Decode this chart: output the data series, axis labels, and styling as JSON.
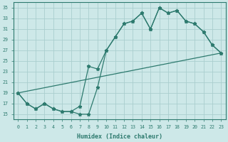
{
  "bg_color": "#cde8e8",
  "grid_color": "#aacece",
  "line_color": "#2d7a6e",
  "xlabel": "Humidex (Indice chaleur)",
  "xlim": [
    -0.5,
    23.5
  ],
  "ylim": [
    14,
    36
  ],
  "yticks": [
    15,
    17,
    19,
    21,
    23,
    25,
    27,
    29,
    31,
    33,
    35
  ],
  "xticks": [
    0,
    1,
    2,
    3,
    4,
    5,
    6,
    7,
    8,
    9,
    10,
    11,
    12,
    13,
    14,
    15,
    16,
    17,
    18,
    19,
    20,
    21,
    22,
    23
  ],
  "line1_x": [
    0,
    1,
    2,
    3,
    4,
    5,
    6,
    7,
    8,
    9,
    10,
    11,
    12,
    13,
    14,
    15,
    16,
    17,
    18,
    19,
    20,
    21,
    22,
    23
  ],
  "line1_y": [
    19,
    17,
    16,
    17,
    16,
    15.5,
    15.5,
    15,
    15,
    20,
    27,
    29.5,
    32,
    32.5,
    34,
    31,
    35,
    34,
    34.5,
    32.5,
    32,
    30.5,
    28,
    26.5
  ],
  "line2_x": [
    0,
    1,
    2,
    3,
    4,
    5,
    6,
    7,
    8,
    9,
    10,
    11,
    12,
    13,
    14,
    15,
    16,
    17,
    18,
    19,
    20,
    21,
    22,
    23
  ],
  "line2_y": [
    19,
    17,
    16,
    17,
    16,
    15.5,
    15.5,
    16.5,
    24,
    23.5,
    27,
    29.5,
    32,
    32.5,
    34,
    31,
    35,
    34,
    34.5,
    32.5,
    32,
    30.5,
    28,
    26.5
  ],
  "line3_x": [
    0,
    23
  ],
  "line3_y": [
    19,
    26.5
  ]
}
